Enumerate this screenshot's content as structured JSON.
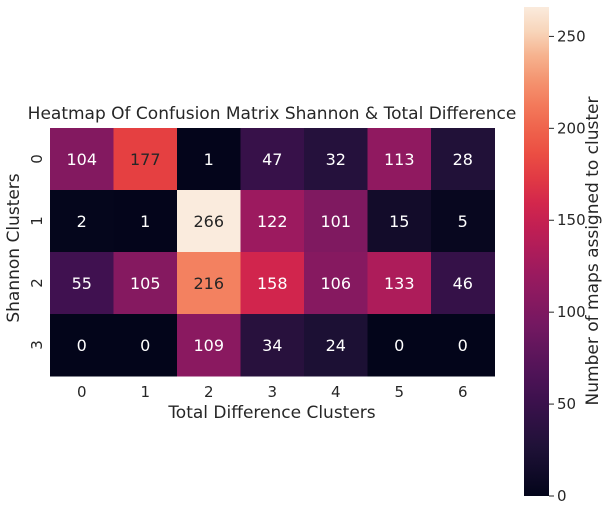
{
  "chart_data": {
    "type": "heatmap",
    "title": "Heatmap Of Confusion Matrix Shannon & Total Difference",
    "xlabel": "Total Difference Clusters",
    "ylabel": "Shannon Clusters",
    "x_categories": [
      "0",
      "1",
      "2",
      "3",
      "4",
      "5",
      "6"
    ],
    "y_categories": [
      "0",
      "1",
      "2",
      "3"
    ],
    "values": [
      [
        104,
        177,
        1,
        47,
        32,
        113,
        28
      ],
      [
        2,
        1,
        266,
        122,
        101,
        15,
        5
      ],
      [
        55,
        105,
        216,
        158,
        106,
        133,
        46
      ],
      [
        0,
        0,
        109,
        34,
        24,
        0,
        0
      ]
    ],
    "colorbar": {
      "label": "Number of maps assigned to cluster",
      "ticks": [
        0,
        50,
        100,
        150,
        200,
        250
      ],
      "range": [
        0,
        266
      ],
      "colormap": "rocket"
    },
    "annotations": true,
    "legend": "colorbar-right"
  }
}
